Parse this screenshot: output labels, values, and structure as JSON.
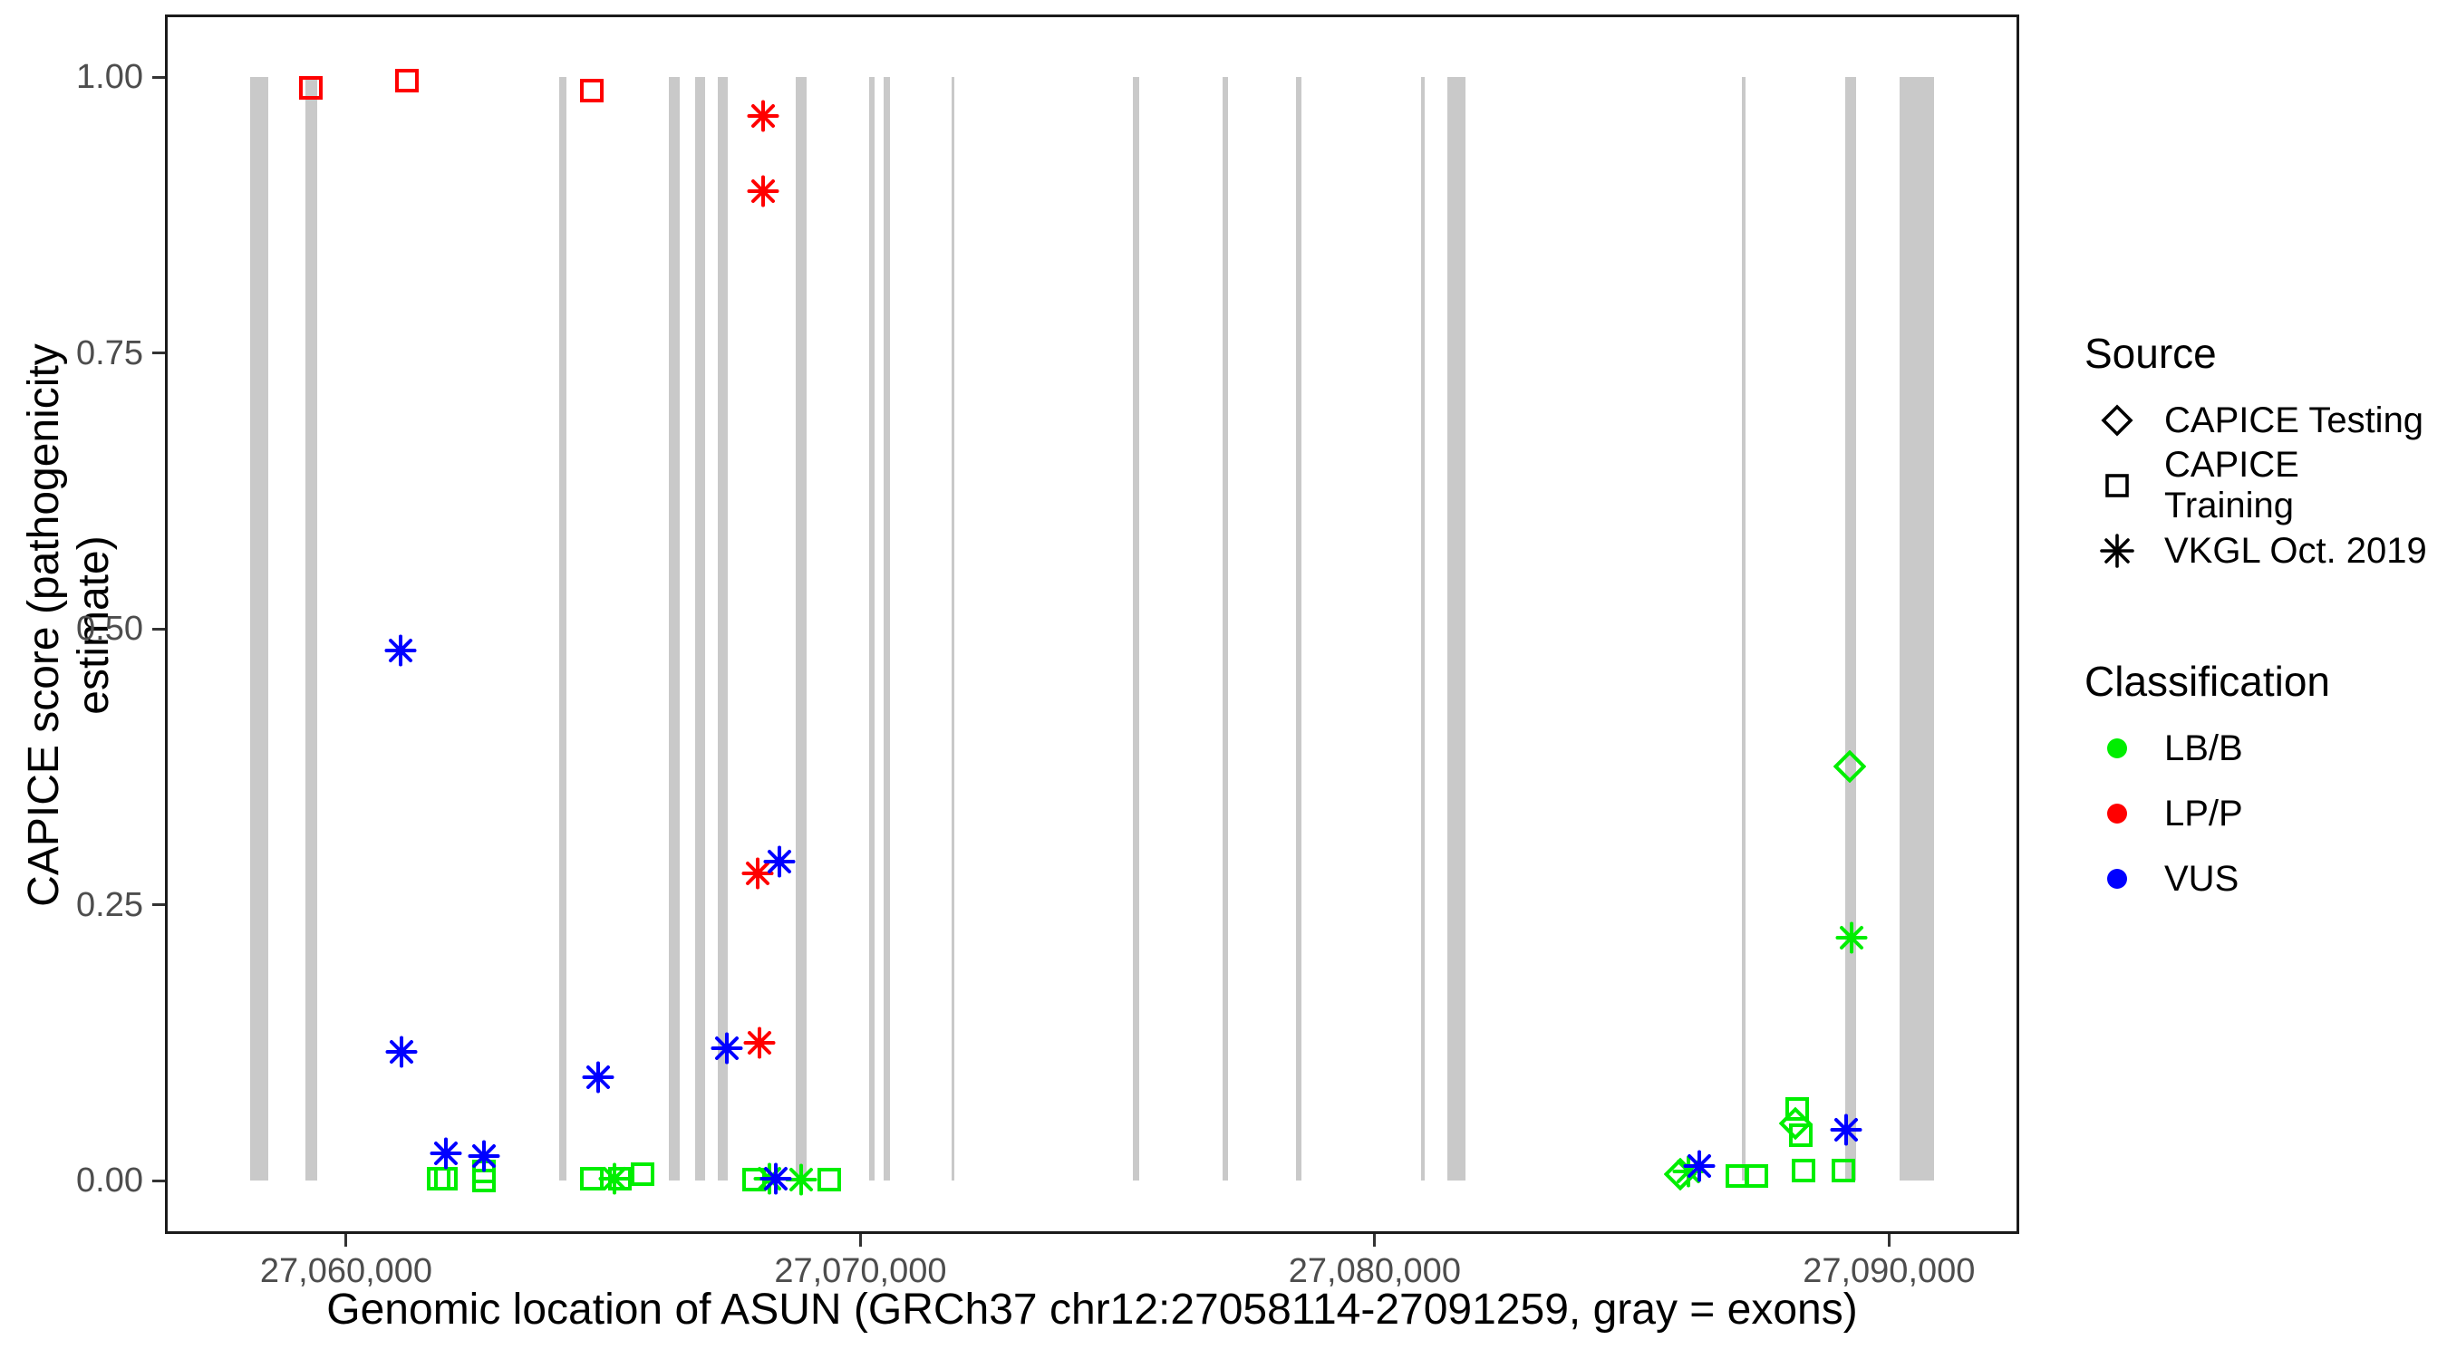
{
  "figure": {
    "x_axis": {
      "title": "Genomic location of ASUN (GRCh37 chr12:27058114-27091259, gray = exons)",
      "ticks": [
        {
          "label": "27,060,000",
          "bp": 27060000
        },
        {
          "label": "27,070,000",
          "bp": 27070000
        },
        {
          "label": "27,080,000",
          "bp": 27080000
        },
        {
          "label": "27,090,000",
          "bp": 27090000
        }
      ]
    },
    "y_axis": {
      "title": "CAPICE score (pathogenicity estimate)",
      "ticks": [
        {
          "label": "1.00",
          "value": 1.0
        },
        {
          "label": "0.75",
          "value": 0.75
        },
        {
          "label": "0.50",
          "value": 0.5
        },
        {
          "label": "0.25",
          "value": 0.25
        },
        {
          "label": "0.00",
          "value": 0.0
        }
      ]
    },
    "legend": {
      "source": {
        "title": "Source",
        "items": [
          {
            "label": "CAPICE Testing",
            "shape": "diamond"
          },
          {
            "label": "CAPICE Training",
            "shape": "square"
          },
          {
            "label": "VKGL Oct. 2019",
            "shape": "asterisk"
          }
        ]
      },
      "classification": {
        "title": "Classification",
        "items": [
          {
            "label": "LB/B",
            "color": "#00EE00"
          },
          {
            "label": "LP/P",
            "color": "#FF0000"
          },
          {
            "label": "VUS",
            "color": "#0000FF"
          }
        ]
      }
    },
    "colors": {
      "exon": "#C9C9C9",
      "LB/B": "#00EE00",
      "LP/P": "#FF0000",
      "VUS": "#0000FF",
      "legend_glyph": "#000000",
      "tick_text": "#4D4D4D",
      "panel_border": "#1b1b1b"
    }
  },
  "chart_data": {
    "type": "scatter",
    "title": "",
    "xlabel": "Genomic location of ASUN (GRCh37 chr12:27058114-27091259, gray = exons)",
    "ylabel": "CAPICE score (pathogenicity estimate)",
    "x_domain_bp": [
      27056476,
      27092532
    ],
    "y_domain": [
      -0.048,
      1.057
    ],
    "grid": false,
    "legend_position": "right",
    "shape_by_source": {
      "CAPICE Testing": "diamond",
      "CAPICE Training": "square",
      "VKGL Oct. 2019": "asterisk"
    },
    "color_by_classification": {
      "LB/B": "#00EE00",
      "LP/P": "#FF0000",
      "VUS": "#0000FF"
    },
    "exons_bp": [
      [
        27058132,
        27058485
      ],
      [
        27059207,
        27059436
      ],
      [
        27064141,
        27064282
      ],
      [
        27066273,
        27066485
      ],
      [
        27066784,
        27066978
      ],
      [
        27067225,
        27067419
      ],
      [
        27068740,
        27068960
      ],
      [
        27070168,
        27070274
      ],
      [
        27070450,
        27070573
      ],
      [
        27071772,
        27071824
      ],
      [
        27075296,
        27075419
      ],
      [
        27077040,
        27077146
      ],
      [
        27078467,
        27078573
      ],
      [
        27080899,
        27080969
      ],
      [
        27081410,
        27081762
      ],
      [
        27087138,
        27087208
      ],
      [
        27089146,
        27089358
      ],
      [
        27090203,
        27090873
      ]
    ],
    "points": [
      {
        "bp": 27061800,
        "score": 0.002,
        "source": "CAPICE Training",
        "classification": "LB/B"
      },
      {
        "bp": 27061940,
        "score": 0.002,
        "source": "CAPICE Training",
        "classification": "LB/B"
      },
      {
        "bp": 27062680,
        "score": 0.008,
        "source": "CAPICE Training",
        "classification": "LB/B"
      },
      {
        "bp": 27062680,
        "score": 0.0,
        "source": "CAPICE Training",
        "classification": "LB/B"
      },
      {
        "bp": 27064780,
        "score": 0.002,
        "source": "CAPICE Training",
        "classification": "LB/B"
      },
      {
        "bp": 27065215,
        "score": 0.002,
        "source": "VKGL Oct. 2019",
        "classification": "LB/B"
      },
      {
        "bp": 27065320,
        "score": 0.002,
        "source": "CAPICE Training",
        "classification": "LB/B"
      },
      {
        "bp": 27065760,
        "score": 0.006,
        "source": "CAPICE Training",
        "classification": "LB/B"
      },
      {
        "bp": 27067930,
        "score": 0.001,
        "source": "CAPICE Training",
        "classification": "LB/B"
      },
      {
        "bp": 27068230,
        "score": 0.002,
        "source": "VKGL Oct. 2019",
        "classification": "LB/B"
      },
      {
        "bp": 27068845,
        "score": 0.001,
        "source": "VKGL Oct. 2019",
        "classification": "LB/B"
      },
      {
        "bp": 27069400,
        "score": 0.001,
        "source": "CAPICE Training",
        "classification": "LB/B"
      },
      {
        "bp": 27085940,
        "score": 0.006,
        "source": "CAPICE Testing",
        "classification": "LB/B"
      },
      {
        "bp": 27086100,
        "score": 0.008,
        "source": "VKGL Oct. 2019",
        "classification": "LB/B"
      },
      {
        "bp": 27087050,
        "score": 0.004,
        "source": "CAPICE Training",
        "classification": "LB/B"
      },
      {
        "bp": 27087420,
        "score": 0.004,
        "source": "CAPICE Training",
        "classification": "LB/B"
      },
      {
        "bp": 27088215,
        "score": 0.065,
        "source": "CAPICE Training",
        "classification": "LB/B"
      },
      {
        "bp": 27088180,
        "score": 0.052,
        "source": "CAPICE Testing",
        "classification": "LB/B"
      },
      {
        "bp": 27088285,
        "score": 0.041,
        "source": "CAPICE Training",
        "classification": "LB/B"
      },
      {
        "bp": 27088338,
        "score": 0.009,
        "source": "CAPICE Training",
        "classification": "LB/B"
      },
      {
        "bp": 27089120,
        "score": 0.009,
        "source": "CAPICE Training",
        "classification": "LB/B"
      },
      {
        "bp": 27089230,
        "score": 0.375,
        "source": "CAPICE Testing",
        "classification": "LB/B"
      },
      {
        "bp": 27089270,
        "score": 0.22,
        "source": "VKGL Oct. 2019",
        "classification": "LB/B"
      },
      {
        "bp": 27059320,
        "score": 0.99,
        "source": "CAPICE Training",
        "classification": "LP/P"
      },
      {
        "bp": 27061180,
        "score": 0.997,
        "source": "CAPICE Training",
        "classification": "LP/P"
      },
      {
        "bp": 27064780,
        "score": 0.988,
        "source": "CAPICE Training",
        "classification": "LP/P"
      },
      {
        "bp": 27068105,
        "score": 0.965,
        "source": "VKGL Oct. 2019",
        "classification": "LP/P"
      },
      {
        "bp": 27068105,
        "score": 0.897,
        "source": "VKGL Oct. 2019",
        "classification": "LP/P"
      },
      {
        "bp": 27068000,
        "score": 0.278,
        "source": "VKGL Oct. 2019",
        "classification": "LP/P"
      },
      {
        "bp": 27068040,
        "score": 0.125,
        "source": "VKGL Oct. 2019",
        "classification": "LP/P"
      },
      {
        "bp": 27061050,
        "score": 0.48,
        "source": "VKGL Oct. 2019",
        "classification": "VUS"
      },
      {
        "bp": 27061080,
        "score": 0.117,
        "source": "VKGL Oct. 2019",
        "classification": "VUS"
      },
      {
        "bp": 27061940,
        "score": 0.025,
        "source": "VKGL Oct. 2019",
        "classification": "VUS"
      },
      {
        "bp": 27062680,
        "score": 0.022,
        "source": "VKGL Oct. 2019",
        "classification": "VUS"
      },
      {
        "bp": 27064900,
        "score": 0.094,
        "source": "VKGL Oct. 2019",
        "classification": "VUS"
      },
      {
        "bp": 27067400,
        "score": 0.12,
        "source": "VKGL Oct. 2019",
        "classification": "VUS"
      },
      {
        "bp": 27068420,
        "score": 0.289,
        "source": "VKGL Oct. 2019",
        "classification": "VUS"
      },
      {
        "bp": 27068350,
        "score": 0.002,
        "source": "VKGL Oct. 2019",
        "classification": "VUS"
      },
      {
        "bp": 27086310,
        "score": 0.013,
        "source": "VKGL Oct. 2019",
        "classification": "VUS"
      },
      {
        "bp": 27089160,
        "score": 0.046,
        "source": "VKGL Oct. 2019",
        "classification": "VUS"
      }
    ]
  }
}
